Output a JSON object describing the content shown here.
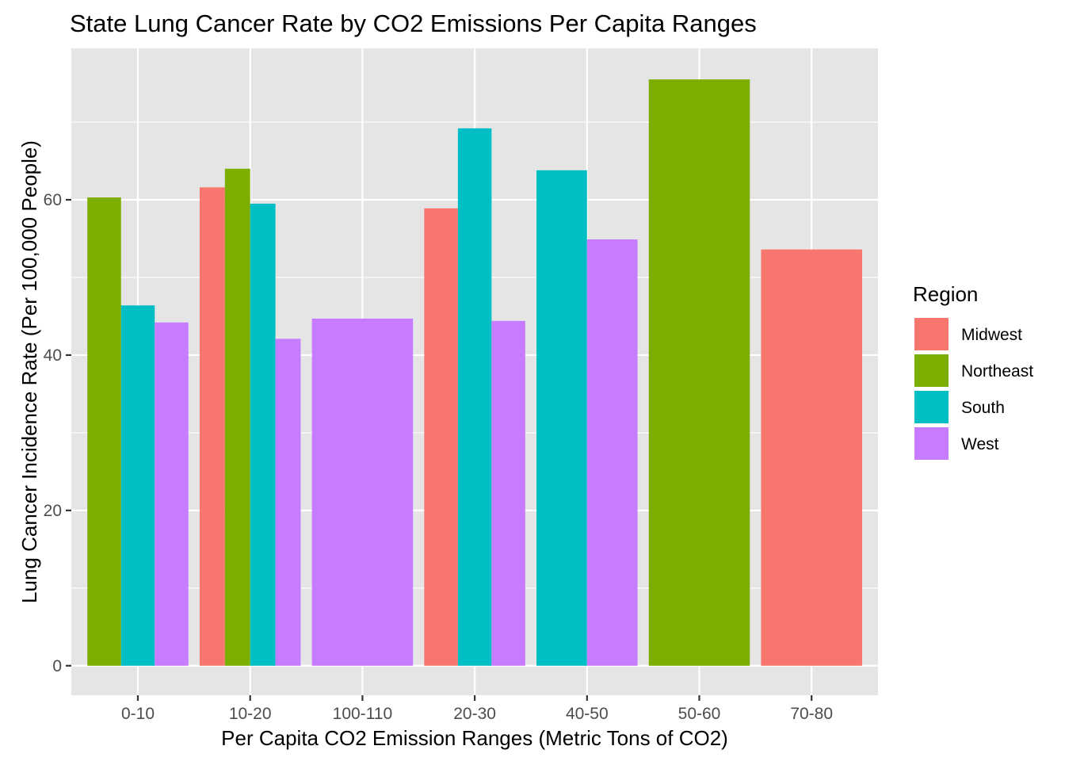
{
  "chart_data": {
    "type": "bar",
    "title": "State Lung Cancer Rate by CO2 Emissions Per Capita Ranges",
    "xlabel": "Per Capita CO2 Emission Ranges (Metric Tons of CO2)",
    "ylabel": "Lung Cancer Incidence Rate (Per 100,000 People)",
    "categories": [
      "0-10",
      "10-20",
      "100-110",
      "20-30",
      "40-50",
      "50-60",
      "70-80"
    ],
    "ylim": [
      -3.8,
      79.5
    ],
    "yticks": [
      0,
      20,
      40,
      60
    ],
    "ytick_labels": [
      "0",
      "20",
      "40",
      "60"
    ],
    "grid": true,
    "position": "dodge",
    "background": "#e5e5e5",
    "legend": {
      "title": "Region",
      "placement": "right"
    },
    "series": [
      {
        "name": "Midwest",
        "color": "#f8766d",
        "values": [
          null,
          61.6,
          null,
          58.9,
          null,
          null,
          53.6
        ]
      },
      {
        "name": "Northeast",
        "color": "#7cae00",
        "values": [
          60.3,
          64.0,
          null,
          null,
          null,
          75.5,
          null
        ]
      },
      {
        "name": "South",
        "color": "#00bfc4",
        "values": [
          46.4,
          59.5,
          null,
          69.2,
          63.8,
          null,
          null
        ]
      },
      {
        "name": "West",
        "color": "#c77cff",
        "values": [
          44.2,
          42.1,
          44.7,
          44.4,
          54.9,
          null,
          null
        ]
      }
    ]
  }
}
